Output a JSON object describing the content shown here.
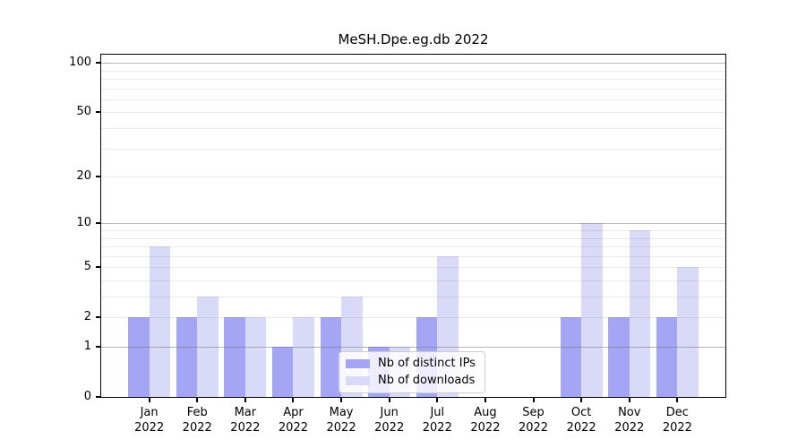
{
  "chart_data": {
    "type": "bar",
    "title": "MeSH.Dpe.eg.db 2022",
    "categories": [
      "Jan",
      "Feb",
      "Mar",
      "Apr",
      "May",
      "Jun",
      "Jul",
      "Aug",
      "Sep",
      "Oct",
      "Nov",
      "Dec"
    ],
    "year_label": "2022",
    "series": [
      {
        "name": "Nb of distinct IPs",
        "color": "#a5a5f5",
        "values": [
          2,
          2,
          2,
          1,
          2,
          1,
          2,
          0,
          0,
          2,
          2,
          2
        ]
      },
      {
        "name": "Nb of downloads",
        "color": "#d9d9f8",
        "values": [
          7,
          3,
          2,
          2,
          3,
          1,
          6,
          0,
          0,
          10,
          9,
          5
        ]
      }
    ],
    "xlabel": "",
    "ylabel": "",
    "y_axis": {
      "scale": "log10(1+x)",
      "ticks": [
        0,
        1,
        2,
        5,
        10,
        20,
        50,
        100
      ],
      "range": [
        0,
        112
      ],
      "major_gridlines": [
        1,
        10,
        100
      ],
      "minor_gridlines": [
        2,
        3,
        4,
        5,
        6,
        7,
        8,
        9,
        20,
        30,
        40,
        50,
        60,
        70,
        80,
        90
      ]
    },
    "legend_position": "lower-center-inside",
    "grid": true
  },
  "colors": {
    "background": "#ffffff",
    "axis": "#000000",
    "grid_major": "rgba(110,110,110,0.5)",
    "grid_minor": "rgba(0,0,0,0.08)",
    "legend_border": "#cccccc",
    "bar_ips": "#a5a5f5",
    "bar_downloads": "#d9d9f8"
  }
}
